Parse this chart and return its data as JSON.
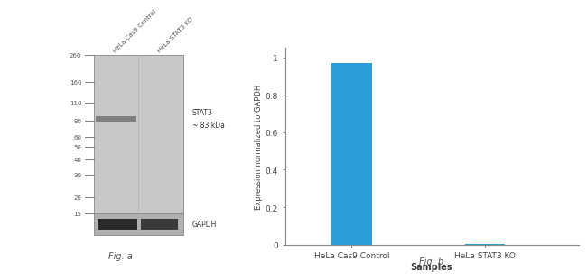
{
  "fig_a": {
    "gel_bg_color": "#cccccc",
    "gel_border_color": "#999999",
    "mw_markers": [
      260,
      160,
      110,
      80,
      60,
      50,
      40,
      30,
      20,
      15
    ],
    "stat3_label": "STAT3",
    "stat3_sublabel": "~ 83 kDa",
    "gapdh_label": "GAPDH",
    "fig_label": "Fig. a",
    "lane_labels": [
      "HeLa Cas9 Control",
      "HeLa STAT3 KO"
    ],
    "background_color": "#ffffff"
  },
  "fig_b": {
    "categories": [
      "HeLa Cas9 Control",
      "HeLa STAT3 KO"
    ],
    "values": [
      0.97,
      0.005
    ],
    "bar_color": "#2b9cd8",
    "xlabel": "Samples",
    "ylabel": "Expression normalized to GAPDH",
    "ylim": [
      0,
      1.05
    ],
    "yticks": [
      0,
      0.2,
      0.4,
      0.6,
      0.8,
      1.0
    ],
    "fig_label": "Fig. b",
    "background_color": "#ffffff"
  }
}
